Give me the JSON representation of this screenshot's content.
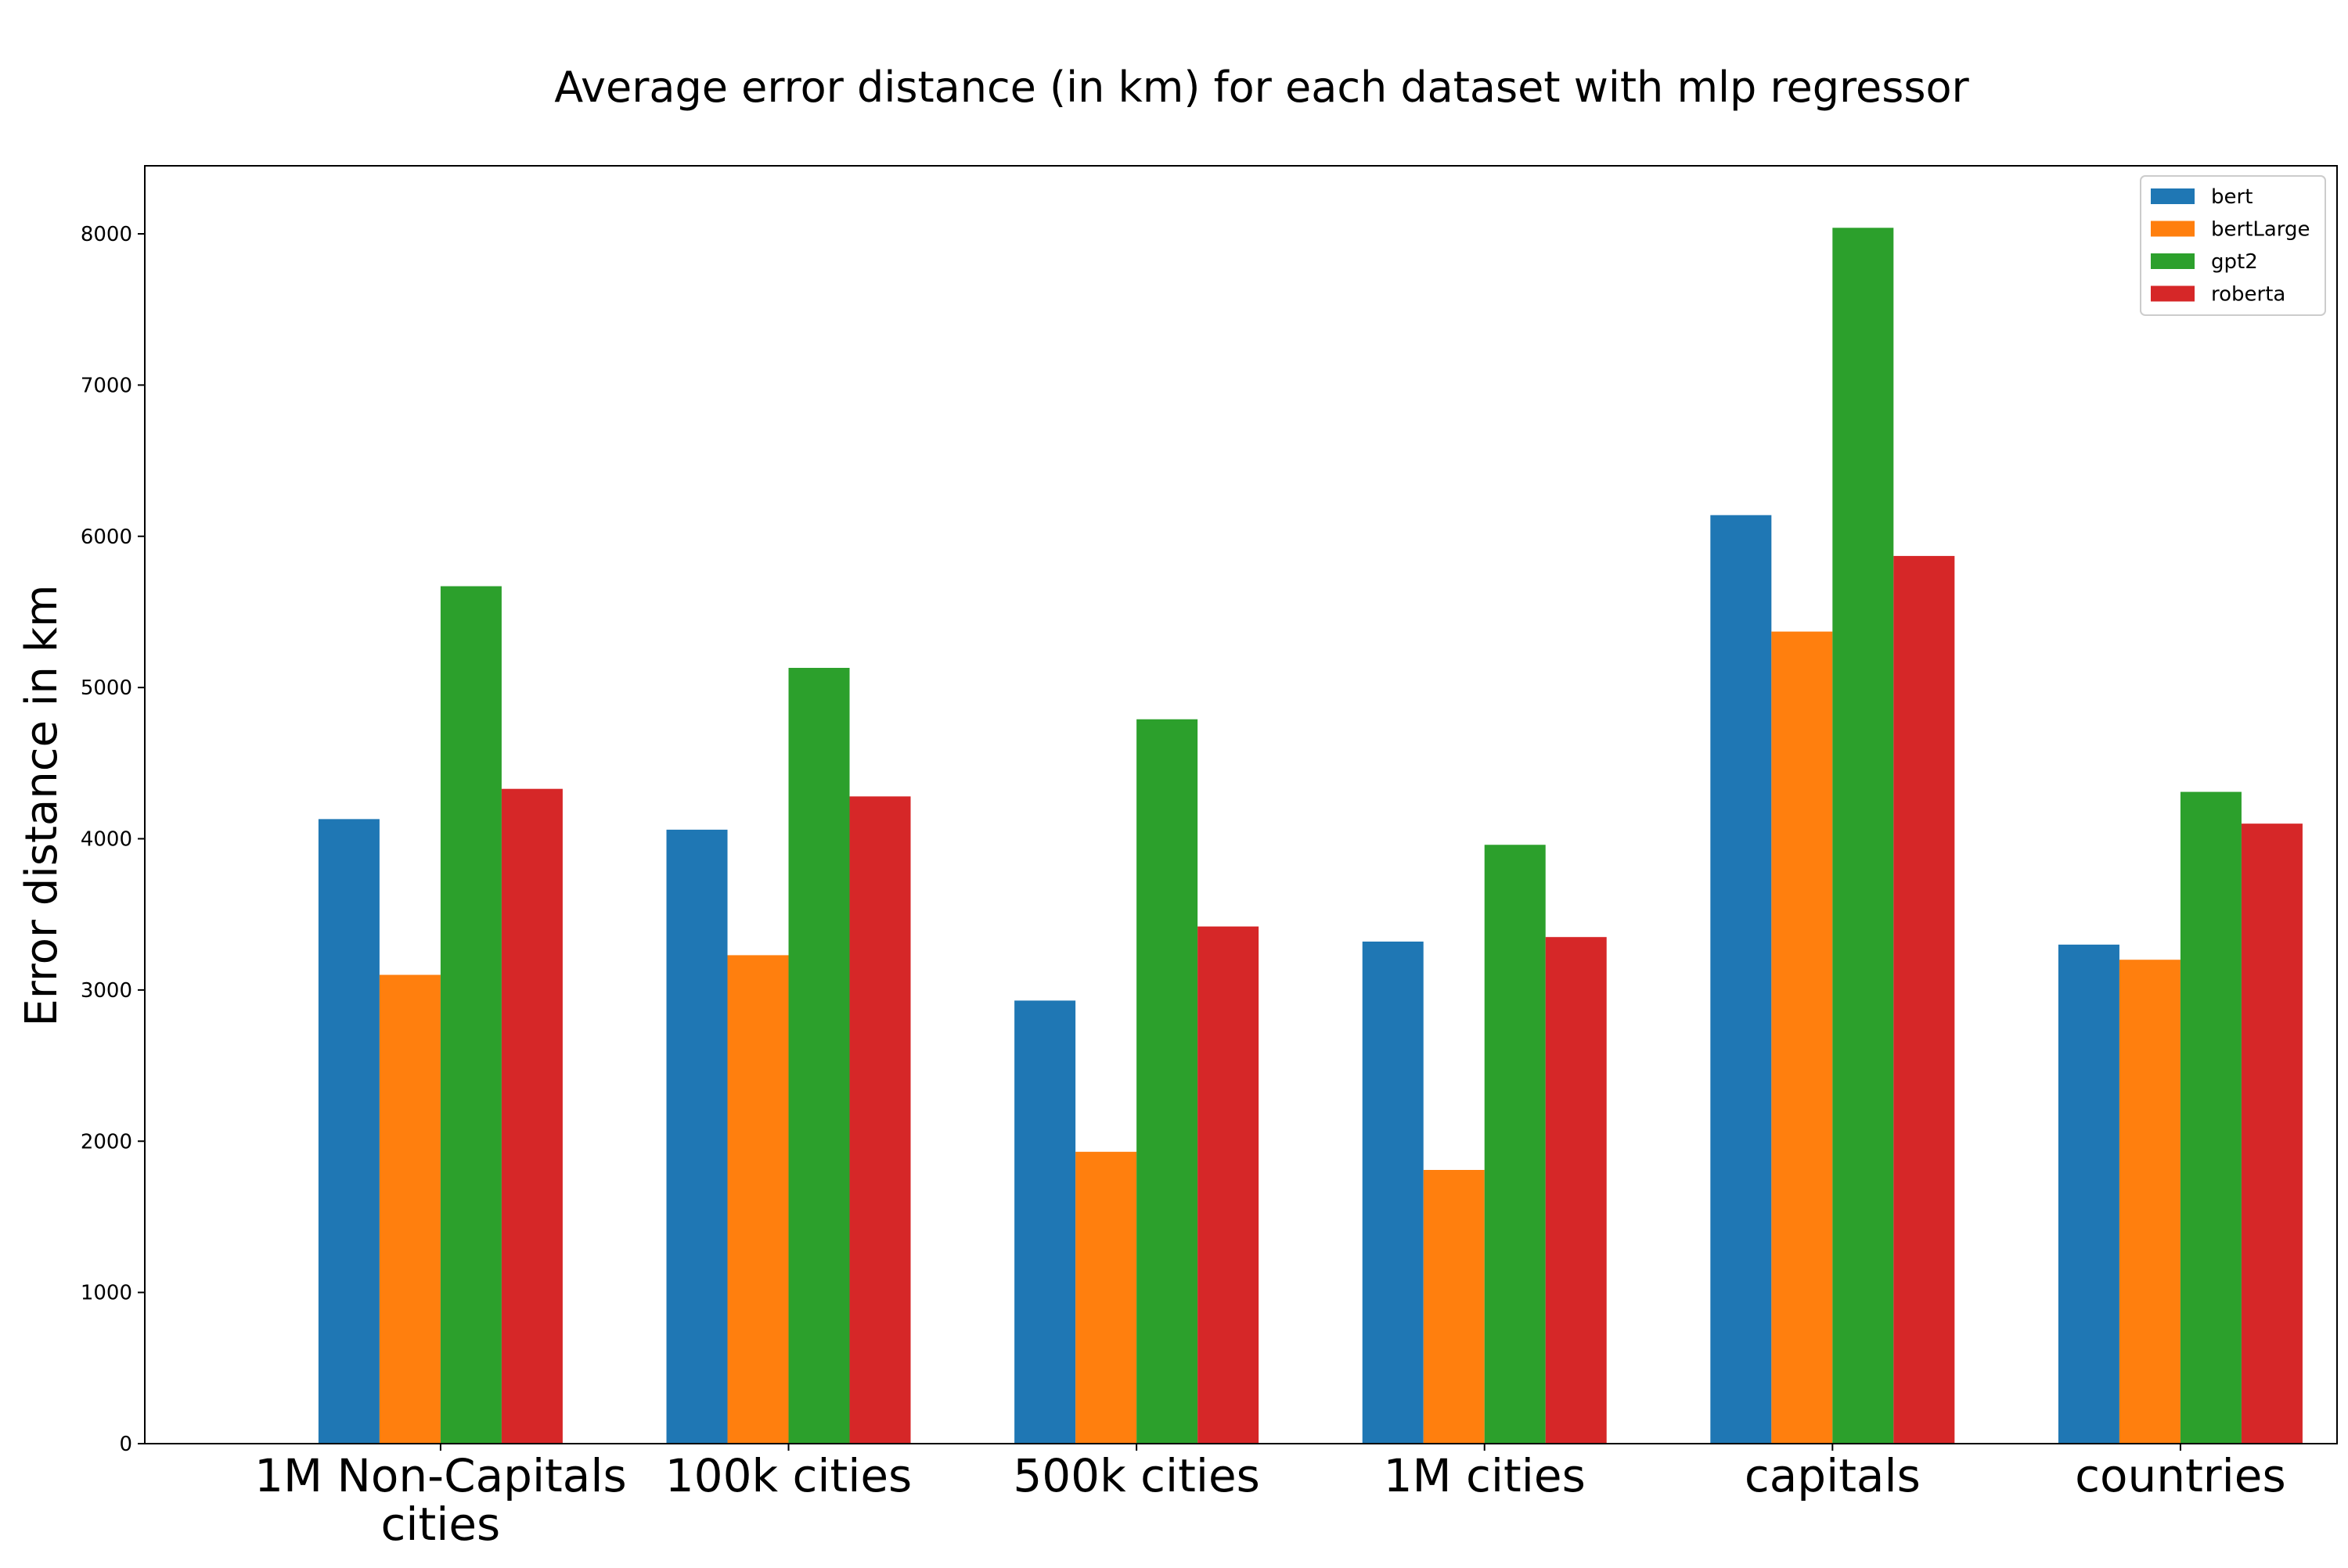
{
  "chart_data": {
    "type": "bar",
    "title": "Average error distance (in km) for each dataset with mlp regressor",
    "xlabel": "",
    "ylabel": "Error distance in km",
    "categories": [
      "1M Non-Capitals cities",
      "100k cities",
      "500k cities",
      "1M cities",
      "capitals",
      "countries"
    ],
    "category_lines": [
      [
        "1M Non-Capitals",
        "cities"
      ],
      [
        "100k cities"
      ],
      [
        "500k cities"
      ],
      [
        "1M cities"
      ],
      [
        "capitals"
      ],
      [
        "countries"
      ]
    ],
    "series": [
      {
        "name": "bert",
        "color": "#1f77b4",
        "values": [
          4130,
          4060,
          2930,
          3320,
          6140,
          3300
        ]
      },
      {
        "name": "bertLarge",
        "color": "#ff7f0e",
        "values": [
          3100,
          3230,
          1930,
          1810,
          5370,
          3200
        ]
      },
      {
        "name": "gpt2",
        "color": "#2ca02c",
        "values": [
          5670,
          5130,
          4790,
          3960,
          8040,
          4310
        ]
      },
      {
        "name": "roberta",
        "color": "#d62728",
        "values": [
          4330,
          4280,
          3420,
          3350,
          5870,
          4100
        ]
      }
    ],
    "yticks": [
      0,
      1000,
      2000,
      3000,
      4000,
      5000,
      6000,
      7000,
      8000
    ],
    "ylim": [
      0,
      8450
    ],
    "grid": false,
    "legend_position": "top-right"
  }
}
